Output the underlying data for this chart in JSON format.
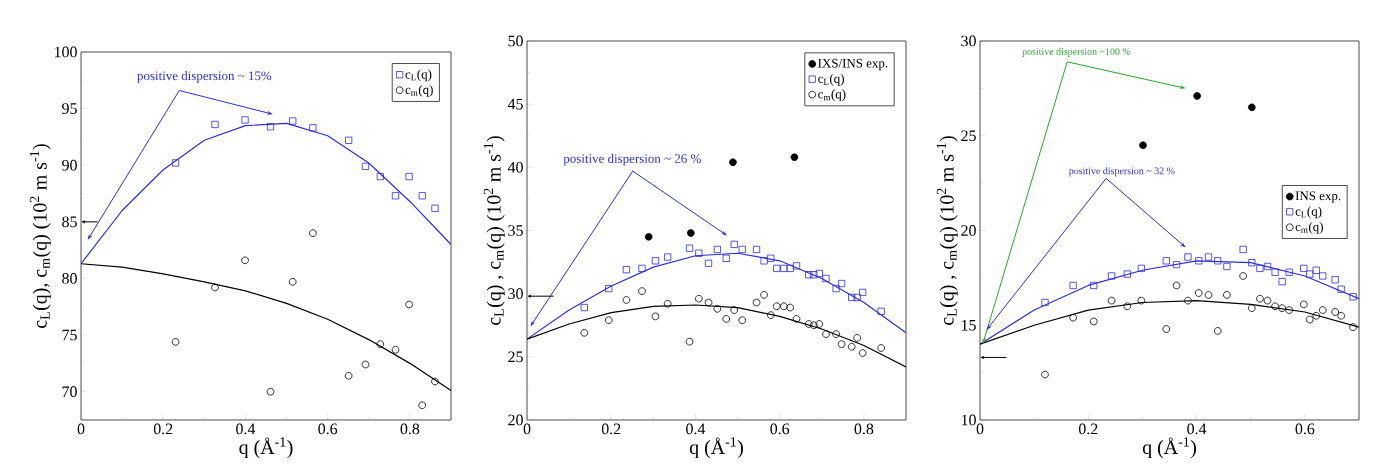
{
  "chart_data": [
    {
      "type": "scatter",
      "xlabel": "q (Å$^{-1}$)",
      "ylabel": "c$_{L}$(q), c$_{m}$(q)  (10$^{2}$ m s$^{-1}$)",
      "xlim": [
        0,
        0.9
      ],
      "ylim": [
        67.5,
        100
      ],
      "xticks": [
        0,
        0.2,
        0.4,
        0.6,
        0.8
      ],
      "yticks": [
        70,
        75,
        80,
        85,
        90,
        95,
        100
      ],
      "legend": "top right",
      "annotations": [
        "positive dispersion ~ 15%"
      ],
      "series": [
        {
          "name": "c$_{L}$(q)",
          "type": "scatter",
          "marker": "square",
          "color": "#2f2fd0",
          "x": [
            0.23,
            0.326,
            0.399,
            0.461,
            0.515,
            0.564,
            0.651,
            0.692,
            0.728,
            0.765,
            0.798,
            0.83,
            0.861
          ],
          "values": [
            90.2,
            93.6,
            94.0,
            93.4,
            93.9,
            93.3,
            92.2,
            89.9,
            89.0,
            87.3,
            89.0,
            87.3,
            86.2
          ]
        },
        {
          "name": "c$_{m}$(q)",
          "type": "scatter",
          "marker": "circle",
          "color": "#000000",
          "x": [
            0.23,
            0.326,
            0.399,
            0.461,
            0.515,
            0.564,
            0.651,
            0.692,
            0.728,
            0.765,
            0.798,
            0.83,
            0.861
          ],
          "values": [
            74.4,
            79.2,
            81.6,
            70.0,
            79.7,
            84.0,
            71.4,
            72.4,
            74.2,
            73.7,
            77.7,
            68.8,
            70.9
          ]
        },
        {
          "type": "line",
          "marker": "none",
          "color": "#2f2fd0",
          "x": [
            0,
            0.1,
            0.2,
            0.3,
            0.4,
            0.5,
            0.6,
            0.7,
            0.8,
            0.9
          ],
          "values": [
            81.3,
            86.0,
            89.6,
            92.2,
            93.5,
            93.7,
            92.6,
            90.2,
            86.8,
            83.0
          ]
        },
        {
          "type": "line",
          "marker": "none",
          "color": "#000000",
          "x": [
            0,
            0.1,
            0.2,
            0.3,
            0.4,
            0.5,
            0.6,
            0.7,
            0.8,
            0.9
          ],
          "values": [
            81.3,
            81.0,
            80.4,
            79.7,
            78.9,
            77.8,
            76.4,
            74.6,
            72.5,
            70.1
          ]
        }
      ]
    },
    {
      "type": "scatter",
      "xlabel": "q (Å$^{-1}$)",
      "ylabel": "c$_{L}$(q) , c$_{m}$(q)  (10$^{2}$ m s$^{-1}$)",
      "xlim": [
        0,
        0.9
      ],
      "ylim": [
        20,
        50
      ],
      "xticks": [
        0,
        0.2,
        0.4,
        0.6,
        0.8
      ],
      "yticks": [
        20,
        25,
        30,
        35,
        40,
        45,
        50
      ],
      "legend": "top right",
      "annotations": [
        "positive dispersion ~ 26 %"
      ],
      "series": [
        {
          "name": "IXS/INS exp.",
          "marker": "circle",
          "color": "#000000",
          "x": [
            0.289,
            0.389,
            0.489,
            0.635
          ],
          "values": [
            34.5,
            34.8,
            40.4,
            40.8
          ]
        },
        {
          "name": "c$_{L}$(q)",
          "type": "scatter",
          "marker": "square",
          "color": "#2f2fd0",
          "x": [
            0.136,
            0.194,
            0.236,
            0.273,
            0.305,
            0.334,
            0.386,
            0.408,
            0.431,
            0.452,
            0.473,
            0.492,
            0.511,
            0.545,
            0.563,
            0.579,
            0.593,
            0.61,
            0.625,
            0.64,
            0.669,
            0.681,
            0.694,
            0.71,
            0.734,
            0.747,
            0.771,
            0.784,
            0.797,
            0.841
          ],
          "values": [
            28.9,
            30.4,
            31.9,
            32.0,
            32.6,
            32.9,
            33.6,
            33.2,
            32.4,
            33.5,
            32.8,
            33.9,
            33.5,
            33.5,
            32.6,
            32.8,
            32.0,
            32.0,
            32.0,
            32.2,
            31.5,
            31.5,
            31.6,
            31.2,
            30.4,
            30.8,
            29.7,
            29.7,
            30.1,
            28.6
          ]
        },
        {
          "name": "c$_{m}$(q)",
          "type": "scatter",
          "marker": "circle",
          "color": "#000000",
          "x": [
            0.136,
            0.194,
            0.236,
            0.273,
            0.305,
            0.334,
            0.386,
            0.408,
            0.431,
            0.452,
            0.473,
            0.492,
            0.511,
            0.545,
            0.563,
            0.579,
            0.593,
            0.61,
            0.625,
            0.64,
            0.669,
            0.681,
            0.694,
            0.71,
            0.734,
            0.747,
            0.771,
            0.784,
            0.797,
            0.841
          ],
          "values": [
            26.9,
            27.9,
            29.5,
            30.2,
            28.2,
            29.2,
            26.2,
            29.6,
            29.3,
            28.8,
            28.0,
            28.7,
            27.9,
            29.3,
            29.9,
            28.3,
            29.0,
            29.0,
            28.9,
            28.0,
            27.6,
            27.5,
            27.6,
            26.8,
            26.8,
            26.0,
            25.8,
            26.5,
            25.3,
            25.7
          ]
        },
        {
          "type": "line",
          "marker": "none",
          "color": "#2f2fd0",
          "x": [
            0,
            0.1,
            0.2,
            0.3,
            0.4,
            0.5,
            0.6,
            0.7,
            0.8,
            0.9
          ],
          "values": [
            26.4,
            28.7,
            30.6,
            32.1,
            33.0,
            33.2,
            32.6,
            31.2,
            29.3,
            26.9
          ]
        },
        {
          "type": "line",
          "marker": "none",
          "color": "#000000",
          "x": [
            0,
            0.1,
            0.2,
            0.3,
            0.4,
            0.5,
            0.6,
            0.7,
            0.8,
            0.9
          ],
          "values": [
            26.4,
            27.6,
            28.5,
            29.0,
            29.1,
            28.9,
            28.2,
            27.2,
            25.9,
            24.2
          ]
        }
      ]
    },
    {
      "type": "scatter",
      "xlabel": "q (Å$^{-1}$)",
      "ylabel": "c$_{L}$(q) , c$_{m}$(q)  (10$^{2}$ m s$^{-1}$)",
      "xlim": [
        0,
        0.7
      ],
      "ylim": [
        10,
        30
      ],
      "xticks": [
        0,
        0.2,
        0.4,
        0.6
      ],
      "yticks": [
        10,
        15,
        20,
        25,
        30
      ],
      "legend": "right",
      "annotations": [
        "positive dispersion ~100 %",
        "positive dispersion ~ 32 %"
      ],
      "series": [
        {
          "name": "INS exp.",
          "marker": "circle",
          "color": "#000000",
          "x": [
            0.301,
            0.401,
            0.502
          ],
          "values": [
            24.5,
            27.1,
            26.5
          ]
        },
        {
          "name": "c$_{L}$(q)",
          "type": "scatter",
          "marker": "square",
          "color": "#2f2fd0",
          "x": [
            0.12,
            0.172,
            0.21,
            0.243,
            0.272,
            0.298,
            0.344,
            0.363,
            0.384,
            0.404,
            0.422,
            0.439,
            0.456,
            0.486,
            0.502,
            0.517,
            0.531,
            0.545,
            0.558,
            0.571,
            0.598,
            0.609,
            0.621,
            0.633,
            0.656,
            0.667,
            0.689
          ],
          "values": [
            16.2,
            17.1,
            17.1,
            17.6,
            17.7,
            18.0,
            18.4,
            18.2,
            18.6,
            18.4,
            18.6,
            18.4,
            18.1,
            19.0,
            18.3,
            18.0,
            18.1,
            17.8,
            17.3,
            17.8,
            18.0,
            17.7,
            17.9,
            17.6,
            17.4,
            16.9,
            16.5
          ]
        },
        {
          "name": "c$_{m}$(q)",
          "type": "scatter",
          "marker": "circle",
          "color": "#000000",
          "x": [
            0.12,
            0.172,
            0.21,
            0.243,
            0.272,
            0.298,
            0.344,
            0.363,
            0.384,
            0.404,
            0.422,
            0.439,
            0.456,
            0.486,
            0.502,
            0.517,
            0.531,
            0.545,
            0.558,
            0.571,
            0.598,
            0.609,
            0.621,
            0.633,
            0.656,
            0.667,
            0.689
          ],
          "values": [
            12.4,
            15.4,
            15.2,
            16.3,
            16.0,
            16.3,
            14.8,
            17.1,
            16.3,
            16.7,
            16.6,
            14.7,
            16.6,
            17.6,
            15.9,
            16.4,
            16.3,
            16.0,
            15.9,
            15.8,
            16.1,
            15.3,
            15.5,
            15.8,
            15.7,
            15.5,
            14.9
          ]
        },
        {
          "type": "line",
          "marker": "none",
          "color": "#2f2fd0",
          "x": [
            0,
            0.1,
            0.2,
            0.3,
            0.4,
            0.5,
            0.6,
            0.7
          ],
          "values": [
            14.0,
            15.8,
            17.1,
            17.9,
            18.4,
            18.3,
            17.6,
            16.4
          ]
        },
        {
          "type": "line",
          "marker": "none",
          "color": "#000000",
          "x": [
            0,
            0.1,
            0.2,
            0.3,
            0.4,
            0.5,
            0.6,
            0.7
          ],
          "values": [
            14.0,
            15.0,
            15.8,
            16.2,
            16.3,
            16.1,
            15.7,
            14.9
          ]
        }
      ]
    }
  ]
}
